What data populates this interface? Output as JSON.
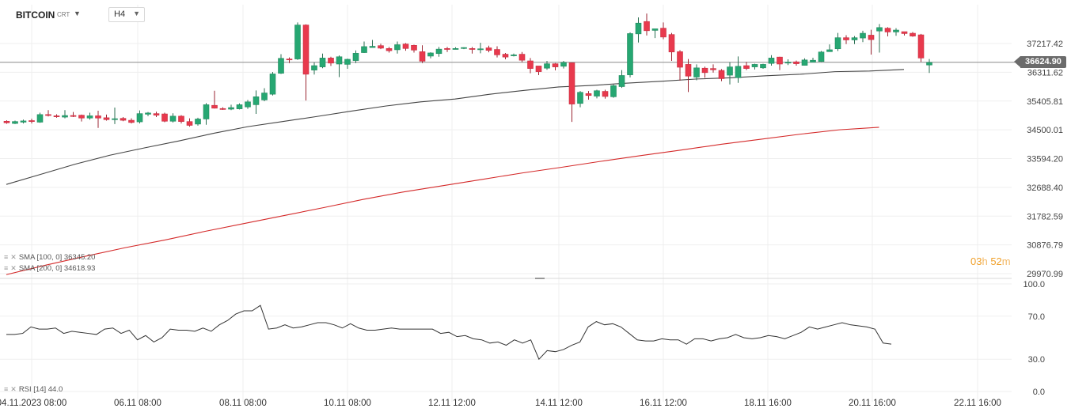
{
  "header": {
    "symbol": "BITCOIN",
    "symbol_suffix": "CRT",
    "timeframe": "H4"
  },
  "indicators": {
    "sma100_label": "SMA [100, 0] 36345.20",
    "sma200_label": "SMA [200, 0] 34618.93",
    "rsi_label": "RSI [14] 44.0"
  },
  "countdown": {
    "hours": "03",
    "h_unit": "h",
    "minutes": "52",
    "m_unit": "m"
  },
  "last_price_label": "36624.90",
  "colors": {
    "up": "#26a772",
    "down": "#e8394d",
    "sma100": "#444444",
    "sma200": "#d42a2a",
    "rsi": "#333333",
    "countdown": "#f0a02a"
  },
  "chart_data": [
    {
      "type": "candlestick",
      "title": "BITCOIN",
      "timeframe": "H4",
      "price_axis": {
        "ticks": [
          37217.42,
          36311.62,
          35405.81,
          34500.01,
          33594.2,
          32688.4,
          31782.59,
          30876.79,
          29970.99
        ],
        "labels": [
          "37217.42",
          "36311.62",
          "35405.81",
          "34500.01",
          "33594.20",
          "32688.40",
          "31782.59",
          "30876.79",
          "29970.99"
        ]
      },
      "time_axis": {
        "labels": [
          "04.11.2023  08:00",
          "06.11  08:00",
          "08.11  08:00",
          "10.11  08:00",
          "12.11  12:00",
          "14.11  12:00",
          "16.11  12:00",
          "18.11  16:00",
          "20.11  16:00",
          "22.11  16:00"
        ]
      },
      "last_price": 36624.9,
      "candles": [
        [
          34770,
          34720,
          34800,
          34690
        ],
        [
          34700,
          34760,
          34790,
          34680
        ],
        [
          34740,
          34780,
          34820,
          34700
        ],
        [
          34790,
          34760,
          34850,
          34700
        ],
        [
          34740,
          34980,
          35040,
          34720
        ],
        [
          34980,
          34960,
          35120,
          34920
        ],
        [
          34940,
          34910,
          34990,
          34880
        ],
        [
          34900,
          34950,
          35120,
          34860
        ],
        [
          34950,
          34940,
          35060,
          34900
        ],
        [
          34960,
          34870,
          34980,
          34760
        ],
        [
          34870,
          34940,
          35040,
          34820
        ],
        [
          34940,
          34870,
          35100,
          34560
        ],
        [
          34880,
          34820,
          34980,
          34790
        ],
        [
          34840,
          34850,
          35200,
          34680
        ],
        [
          34860,
          34800,
          34900,
          34770
        ],
        [
          34800,
          34730,
          34860,
          34700
        ],
        [
          34750,
          35010,
          35110,
          34700
        ],
        [
          34990,
          35030,
          35060,
          34930
        ],
        [
          35010,
          34960,
          35070,
          34900
        ],
        [
          35000,
          34770,
          35040,
          34740
        ],
        [
          34770,
          34930,
          35020,
          34730
        ],
        [
          34930,
          34760,
          34960,
          34700
        ],
        [
          34760,
          34640,
          34860,
          34600
        ],
        [
          34680,
          34840,
          34880,
          34630
        ],
        [
          34840,
          35290,
          35340,
          34660
        ],
        [
          35270,
          35180,
          35730,
          35170
        ],
        [
          35170,
          35150,
          35210,
          35130
        ],
        [
          35150,
          35200,
          35290,
          35120
        ],
        [
          35160,
          35290,
          35330,
          35140
        ],
        [
          35220,
          35380,
          35440,
          35160
        ],
        [
          35290,
          35540,
          35740,
          35000
        ],
        [
          35440,
          35660,
          35810,
          35400
        ],
        [
          35620,
          36260,
          36320,
          35580
        ],
        [
          36280,
          36750,
          36880,
          36260
        ],
        [
          36730,
          36720,
          36780,
          36600
        ],
        [
          36730,
          37800,
          37880,
          36700
        ],
        [
          37800,
          36250,
          37820,
          35420
        ],
        [
          36380,
          36520,
          36620,
          36240
        ],
        [
          36480,
          36760,
          36900,
          36440
        ],
        [
          36760,
          36600,
          36800,
          36510
        ],
        [
          36570,
          36800,
          36840,
          36160
        ],
        [
          36560,
          36720,
          36740,
          36420
        ],
        [
          36680,
          36910,
          37000,
          36600
        ],
        [
          36930,
          37120,
          37280,
          36920
        ],
        [
          37090,
          37130,
          37330,
          37090
        ],
        [
          37150,
          37070,
          37210,
          37040
        ],
        [
          37060,
          36990,
          37110,
          36930
        ],
        [
          37020,
          37180,
          37280,
          36900
        ],
        [
          37200,
          37060,
          37230,
          36990
        ],
        [
          37160,
          37010,
          37180,
          36930
        ],
        [
          36960,
          36660,
          37160,
          36600
        ],
        [
          36820,
          36920,
          36940,
          36750
        ],
        [
          36900,
          37040,
          37110,
          36800
        ],
        [
          37060,
          37030,
          37110,
          36950
        ],
        [
          37050,
          37060,
          37100,
          37040
        ],
        [
          37070,
          37090,
          37100,
          37040
        ],
        [
          37060,
          37040,
          37110,
          36900
        ],
        [
          37040,
          37050,
          37240,
          36910
        ],
        [
          37080,
          37000,
          37150,
          36940
        ],
        [
          37030,
          36860,
          37130,
          36780
        ],
        [
          36880,
          36790,
          36920,
          36720
        ],
        [
          36850,
          36860,
          36900,
          36810
        ],
        [
          36880,
          36690,
          36950,
          36630
        ],
        [
          36670,
          36430,
          36760,
          36280
        ],
        [
          36510,
          36330,
          36480,
          36220
        ],
        [
          36440,
          36580,
          36670,
          36390
        ],
        [
          36580,
          36480,
          36600,
          36370
        ],
        [
          36500,
          36620,
          36670,
          36430
        ],
        [
          36610,
          35310,
          36620,
          34750
        ],
        [
          35330,
          35680,
          35720,
          35210
        ],
        [
          35640,
          35580,
          35720,
          35450
        ],
        [
          35560,
          35730,
          35760,
          35490
        ],
        [
          35710,
          35550,
          35760,
          35480
        ],
        [
          35540,
          35890,
          35930,
          35510
        ],
        [
          35860,
          36210,
          36380,
          35820
        ],
        [
          36230,
          37530,
          37570,
          36150
        ],
        [
          37520,
          37860,
          38040,
          37250
        ],
        [
          37910,
          37620,
          38160,
          37470
        ],
        [
          37630,
          37680,
          37660,
          37390
        ],
        [
          37700,
          37420,
          37880,
          37350
        ],
        [
          37500,
          36950,
          37550,
          36670
        ],
        [
          36960,
          36470,
          37010,
          36050
        ],
        [
          36560,
          36190,
          36730,
          35690
        ],
        [
          36160,
          36450,
          36560,
          36060
        ],
        [
          36440,
          36300,
          36490,
          36140
        ],
        [
          36430,
          36390,
          36560,
          36300
        ],
        [
          36370,
          36110,
          36410,
          36030
        ],
        [
          36220,
          36480,
          36630,
          35930
        ],
        [
          36140,
          36500,
          36810,
          35980
        ],
        [
          36520,
          36430,
          36640,
          36380
        ],
        [
          36480,
          36560,
          36580,
          36400
        ],
        [
          36450,
          36560,
          36580,
          36420
        ],
        [
          36590,
          36760,
          36850,
          36520
        ],
        [
          36790,
          36570,
          36800,
          36380
        ],
        [
          36600,
          36630,
          36720,
          36540
        ],
        [
          36640,
          36580,
          36680,
          36520
        ],
        [
          36530,
          36700,
          36750,
          36530
        ],
        [
          36630,
          36690,
          36770,
          36640
        ],
        [
          36650,
          36950,
          36980,
          36640
        ],
        [
          36960,
          37020,
          37190,
          36960
        ],
        [
          37050,
          37400,
          37550,
          36980
        ],
        [
          37400,
          37330,
          37480,
          37200
        ],
        [
          37330,
          37400,
          37450,
          37200
        ],
        [
          37390,
          37540,
          37620,
          37260
        ],
        [
          37480,
          37340,
          37650,
          36870
        ],
        [
          37610,
          37720,
          37830,
          36930
        ],
        [
          37700,
          37580,
          37730,
          37440
        ],
        [
          37580,
          37640,
          37700,
          37460
        ],
        [
          37590,
          37530,
          37580,
          37470
        ],
        [
          37540,
          37450,
          37580,
          37430
        ],
        [
          37490,
          36760,
          37520,
          36640
        ],
        [
          36540,
          36620,
          36730,
          36290
        ]
      ],
      "sma100": [
        32780,
        33100,
        33420,
        33700,
        33930,
        34150,
        34390,
        34600,
        34760,
        34920,
        35090,
        35250,
        35380,
        35470,
        35620,
        35740,
        35850,
        35900,
        35970,
        36030,
        36100,
        36140,
        36200,
        36250,
        36330,
        36350,
        36400
      ],
      "sma200": [
        29940,
        30240,
        30520,
        30790,
        31030,
        31300,
        31550,
        31800,
        32050,
        32310,
        32540,
        32740,
        32940,
        33140,
        33320,
        33510,
        33690,
        33860,
        34040,
        34200,
        34360,
        34500,
        34580
      ],
      "rsi": [
        53,
        53,
        54,
        60,
        58,
        58,
        59,
        54,
        56,
        55,
        54,
        53,
        58,
        59,
        54,
        57,
        48,
        52,
        46,
        50,
        58,
        57,
        57,
        56,
        59,
        56,
        62,
        66,
        72,
        75,
        75,
        80,
        58,
        59,
        62,
        59,
        60,
        62,
        64,
        64,
        62,
        59,
        63,
        59,
        57,
        57,
        58,
        59,
        58,
        58,
        58,
        58,
        58,
        54,
        55,
        51,
        52,
        49,
        48,
        45,
        46,
        43,
        48,
        45,
        48,
        30,
        38,
        37,
        39,
        43,
        46,
        60,
        65,
        62,
        63,
        60,
        54,
        48,
        47,
        47,
        49,
        48,
        48,
        44,
        49,
        49,
        47,
        49,
        50,
        53,
        50,
        49,
        50,
        52,
        51,
        49,
        52,
        55,
        60,
        58,
        60,
        62,
        64,
        62,
        61,
        60,
        58,
        45,
        44
      ],
      "rsi_axis": {
        "ticks": [
          100,
          70,
          30,
          0
        ],
        "labels": [
          "100.0",
          "70.0",
          "30.0",
          "0.0"
        ]
      }
    }
  ]
}
